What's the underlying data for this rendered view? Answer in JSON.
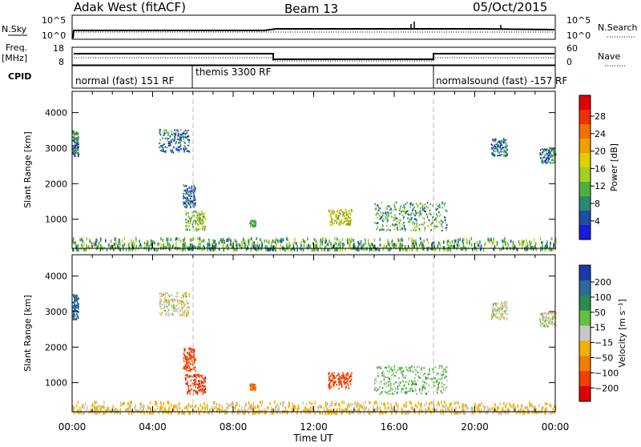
{
  "header": {
    "site": "Adak West (fitACF)",
    "beam": "Beam 13",
    "date": "05/Oct/2015"
  },
  "top_panels": {
    "nsky_label": "N.Sky",
    "nsearch_label": "N.Search",
    "nsky_ticks": [
      "10^5",
      "10^0"
    ],
    "nsearch_ticks": [
      "10^5",
      "10^0"
    ],
    "freq_label_1": "Freq.",
    "freq_label_2": "[MHz]",
    "freq_ticks": [
      "18",
      "8"
    ],
    "nave_label": "Nave",
    "nave_ticks": [
      "60",
      "0"
    ],
    "cpid_label": "CPID",
    "cpid_segments": [
      {
        "label": "normal (fast) 151 RF",
        "start": 0,
        "end": 6
      },
      {
        "label": "themis 3300 RF",
        "start": 6,
        "end": 18
      },
      {
        "label": "normalsound (fast) -157 RF",
        "start": 18,
        "end": 24
      }
    ]
  },
  "axes": {
    "ylabel": "Slant Range [km]",
    "yticks": [
      "4000",
      "3000",
      "2000",
      "1000"
    ],
    "xticks": [
      "00:00",
      "04:00",
      "08:00",
      "12:00",
      "16:00",
      "20:00",
      "00:00"
    ],
    "xlabel": "Time UT"
  },
  "power_scale": {
    "label": "Power [dB]",
    "ticks": [
      "28",
      "24",
      "20",
      "16",
      "12",
      "8",
      "4"
    ],
    "colors": [
      "#e00000",
      "#f03000",
      "#f07000",
      "#f0a000",
      "#e0d000",
      "#a0d020",
      "#50b040",
      "#2a8a70",
      "#1e4ea0",
      "#1a1adc"
    ]
  },
  "velocity_scale": {
    "label": "Velocity [m s⁻¹]",
    "ticks": [
      "200",
      "100",
      "50",
      "15",
      "−15",
      "−50",
      "−100",
      "−200"
    ],
    "colors": [
      "#1a3aa8",
      "#2a6a9a",
      "#2a8a50",
      "#60c040",
      "#c8c8c8",
      "#f0b000",
      "#f08000",
      "#f04000",
      "#e00000"
    ]
  },
  "chart_data": [
    {
      "type": "line",
      "title": "Adak West (fitACF) Beam 13 05/Oct/2015",
      "ylabel": "N.Sky / N.Search",
      "x_range": [
        0,
        24
      ],
      "series": [
        {
          "name": "N.Sky",
          "x": [
            0,
            0.3,
            10,
            24
          ],
          "y_level": [
            0.3,
            0.75,
            0.8,
            0.78
          ]
        },
        {
          "name": "N.Search",
          "x": [
            0,
            24
          ],
          "y_level": [
            0.7,
            0.7
          ]
        }
      ]
    },
    {
      "type": "line",
      "ylabel": "Freq. [MHz] / Nave",
      "x_range": [
        0,
        24
      ],
      "series": [
        {
          "name": "Freq.",
          "x": [
            0,
            10,
            10,
            18,
            18,
            24
          ],
          "y": [
            12.7,
            12.7,
            10.5,
            10.5,
            12.7,
            12.7
          ]
        },
        {
          "name": "Nave",
          "x": [
            0,
            10,
            10,
            18,
            18,
            24
          ],
          "y": [
            10,
            10,
            2,
            2,
            10,
            10
          ]
        }
      ]
    },
    {
      "type": "heatmap",
      "ylabel": "Slant Range [km]",
      "xlabel": "Time UT",
      "quantity": "Power [dB]",
      "x_range_hours": [
        0,
        24
      ],
      "y_range_km": [
        180,
        4600
      ],
      "scatter_regions": [
        {
          "t": [
            0,
            0.3
          ],
          "r": [
            2800,
            3500
          ],
          "value": 6
        },
        {
          "t": [
            4.3,
            5.8
          ],
          "r": [
            2900,
            3550
          ],
          "value": 6
        },
        {
          "t": [
            5.6,
            6.6
          ],
          "r": [
            700,
            1250
          ],
          "value": 13
        },
        {
          "t": [
            5.5,
            6.1
          ],
          "r": [
            1350,
            2000
          ],
          "value": 5
        },
        {
          "t": [
            8.8,
            9.1
          ],
          "r": [
            800,
            1000
          ],
          "value": 8
        },
        {
          "t": [
            12.7,
            13.9
          ],
          "r": [
            850,
            1300
          ],
          "value": 16
        },
        {
          "t": [
            15.0,
            18.6
          ],
          "r": [
            700,
            1500
          ],
          "value": 9
        },
        {
          "t": [
            20.8,
            21.6
          ],
          "r": [
            2800,
            3300
          ],
          "value": 6
        },
        {
          "t": [
            23.2,
            24.0
          ],
          "r": [
            2600,
            3000
          ],
          "value": 6
        },
        {
          "t": [
            0,
            24
          ],
          "r": [
            180,
            500
          ],
          "value": 10
        }
      ]
    },
    {
      "type": "heatmap",
      "ylabel": "Slant Range [km]",
      "xlabel": "Time UT",
      "quantity": "Velocity [m s-1]",
      "x_range_hours": [
        0,
        24
      ],
      "y_range_km": [
        180,
        4600
      ],
      "scatter_regions": [
        {
          "t": [
            0,
            0.3
          ],
          "r": [
            2800,
            3500
          ],
          "value": 150
        },
        {
          "t": [
            4.3,
            5.8
          ],
          "r": [
            2900,
            3550
          ],
          "value": 0
        },
        {
          "t": [
            5.6,
            6.6
          ],
          "r": [
            700,
            1250
          ],
          "value": -180
        },
        {
          "t": [
            5.5,
            6.1
          ],
          "r": [
            1350,
            2000
          ],
          "value": -150
        },
        {
          "t": [
            8.8,
            9.1
          ],
          "r": [
            800,
            1000
          ],
          "value": -80
        },
        {
          "t": [
            12.7,
            13.9
          ],
          "r": [
            850,
            1300
          ],
          "value": -150
        },
        {
          "t": [
            15.0,
            18.6
          ],
          "r": [
            700,
            1500
          ],
          "value": 30
        },
        {
          "t": [
            20.8,
            21.6
          ],
          "r": [
            2800,
            3300
          ],
          "value": 0
        },
        {
          "t": [
            23.2,
            24.0
          ],
          "r": [
            2600,
            3000
          ],
          "value": 0
        },
        {
          "t": [
            0,
            24
          ],
          "r": [
            180,
            500
          ],
          "value": -20
        }
      ]
    }
  ]
}
